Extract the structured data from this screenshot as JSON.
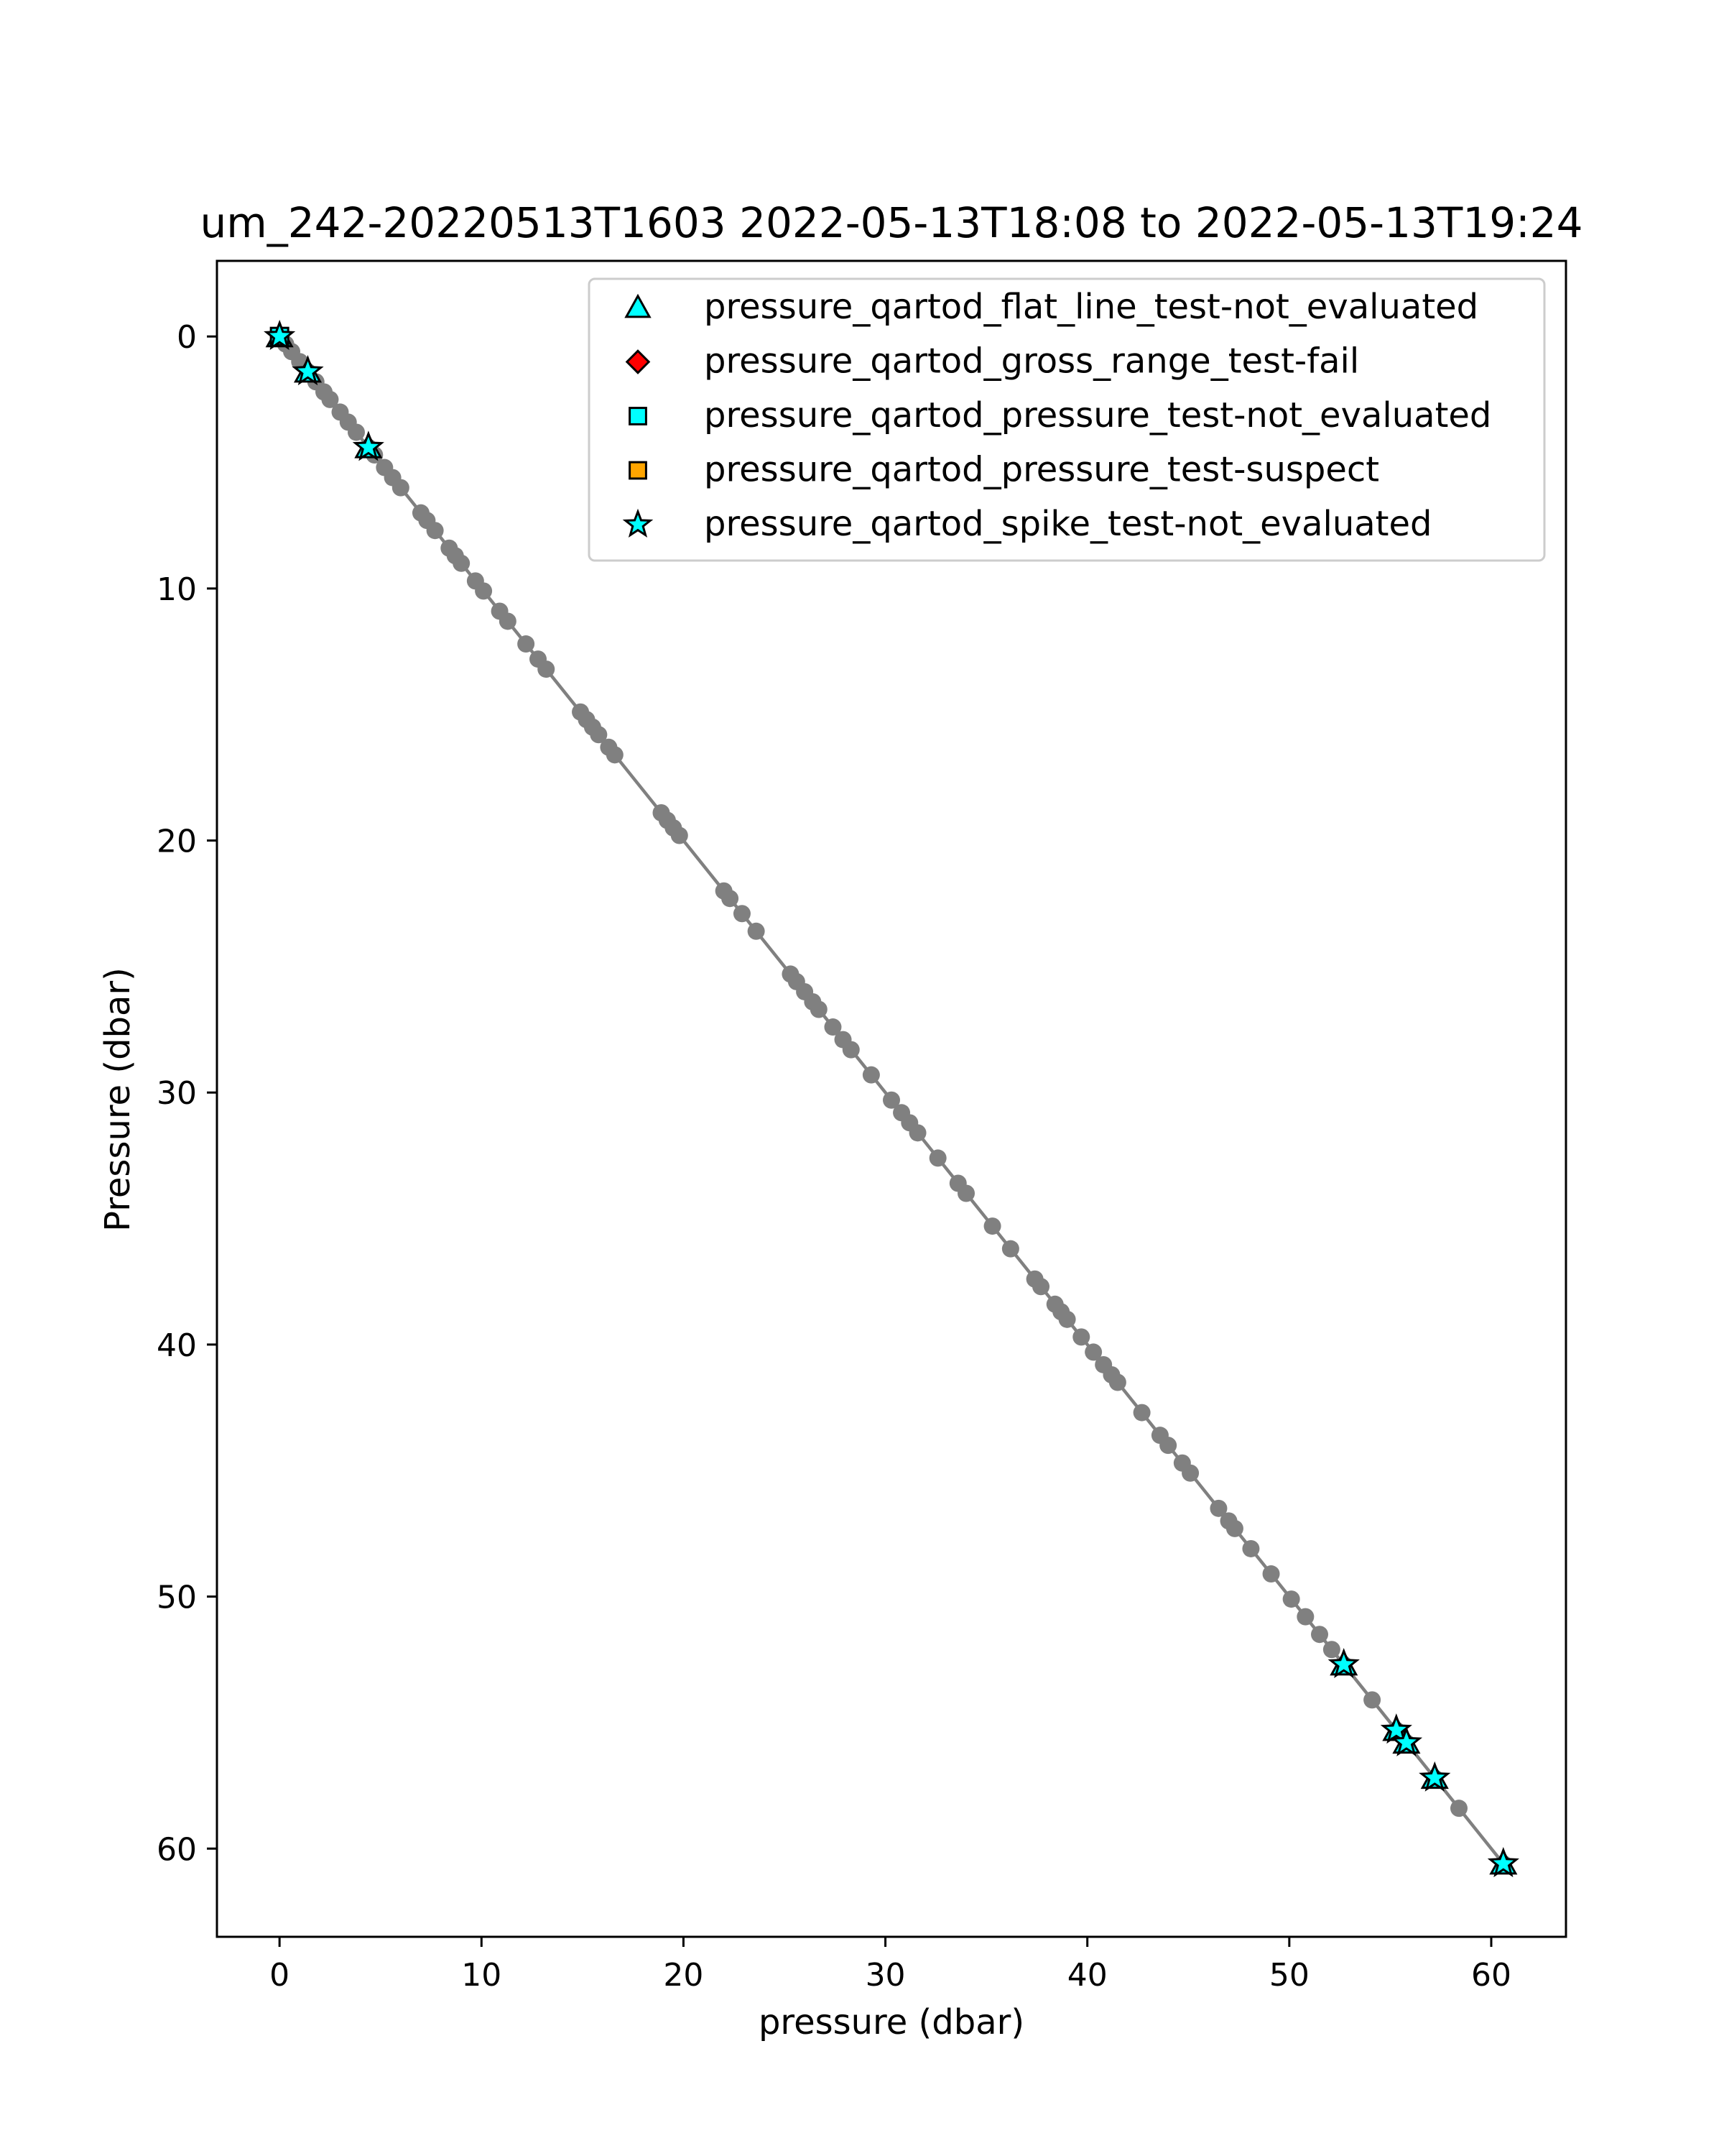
{
  "chart_data": {
    "type": "scatter",
    "title": "um_242-20220513T1603 2022-05-13T18:08 to 2022-05-13T19:24",
    "xlabel": "pressure (dbar)",
    "ylabel": "Pressure (dbar)",
    "xlim": [
      -3.1,
      63.7
    ],
    "ylim": [
      63.5,
      -3.0
    ],
    "y_inverted": true,
    "xticks": [
      0,
      10,
      20,
      30,
      40,
      50,
      60
    ],
    "yticks": [
      0,
      10,
      20,
      30,
      40,
      50,
      60
    ],
    "grid": false,
    "legend_location": "top-right",
    "profile_line": {
      "color": "#808080",
      "x": [
        0,
        60.6
      ],
      "y": [
        0,
        60.6
      ]
    },
    "profile_points": {
      "color": "#808080",
      "values": [
        0.1,
        0.3,
        0.6,
        1.0,
        1.4,
        1.8,
        2.2,
        2.5,
        3.0,
        3.4,
        3.8,
        4.4,
        4.7,
        5.2,
        5.6,
        6.0,
        7.0,
        7.3,
        7.7,
        8.4,
        8.7,
        9.0,
        9.7,
        10.1,
        10.9,
        11.3,
        12.2,
        12.8,
        13.2,
        14.9,
        15.2,
        15.5,
        15.8,
        16.3,
        16.6,
        18.9,
        19.2,
        19.5,
        19.8,
        22.0,
        22.3,
        22.9,
        23.6,
        25.3,
        25.6,
        26.0,
        26.4,
        26.7,
        27.4,
        27.9,
        28.3,
        29.3,
        30.3,
        30.8,
        31.2,
        31.6,
        32.6,
        33.6,
        34.0,
        35.3,
        36.2,
        37.4,
        37.7,
        38.4,
        38.7,
        39.0,
        39.7,
        40.3,
        40.8,
        41.2,
        41.5,
        42.7,
        43.6,
        44.0,
        44.7,
        45.1,
        46.5,
        47.0,
        47.3,
        48.1,
        49.1,
        50.1,
        50.8,
        51.5,
        52.1,
        52.7,
        54.1,
        55.3,
        55.8,
        57.2,
        58.4,
        60.6
      ]
    },
    "series": [
      {
        "name": "pressure_qartod_flat_line_test-not_evaluated",
        "marker": "triangle",
        "color": "#00ffff",
        "x": [
          0.0,
          1.4,
          4.4,
          52.7,
          55.3,
          55.8,
          57.2,
          60.6
        ],
        "y": [
          0.0,
          1.4,
          4.4,
          52.7,
          55.3,
          55.8,
          57.2,
          60.6
        ]
      },
      {
        "name": "pressure_qartod_gross_range_test-fail",
        "marker": "diamond",
        "color": "#ff0000",
        "x": [],
        "y": []
      },
      {
        "name": "pressure_qartod_pressure_test-not_evaluated",
        "marker": "square",
        "color": "#00ffff",
        "x": [
          0.0
        ],
        "y": [
          0.0
        ]
      },
      {
        "name": "pressure_qartod_pressure_test-suspect",
        "marker": "square",
        "color": "#ffa500",
        "x": [],
        "y": []
      },
      {
        "name": "pressure_qartod_spike_test-not_evaluated",
        "marker": "star",
        "color": "#00ffff",
        "x": [
          0.0,
          1.4,
          4.4,
          52.7,
          55.3,
          55.8,
          57.2,
          60.6
        ],
        "y": [
          0.0,
          1.4,
          4.4,
          52.7,
          55.3,
          55.8,
          57.2,
          60.6
        ]
      }
    ]
  }
}
